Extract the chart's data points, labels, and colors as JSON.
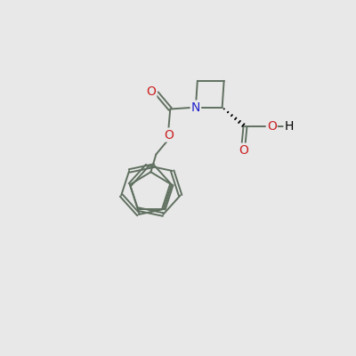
{
  "background_color": "#e8e8e8",
  "bond_color": "#607060",
  "bond_width": 1.4,
  "atom_colors": {
    "N": "#2222cc",
    "O": "#cc2222",
    "C": "#000000",
    "H": "#000000"
  }
}
